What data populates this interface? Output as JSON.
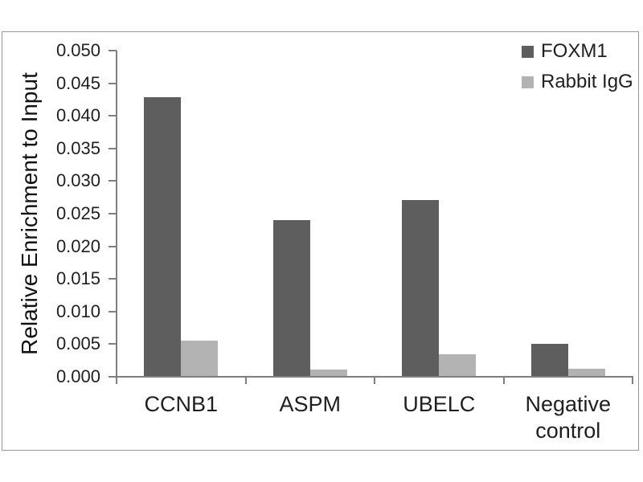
{
  "figure": {
    "background": "#ffffff",
    "frame_border_color": "#979797"
  },
  "chart_data": {
    "type": "bar",
    "title": "",
    "xlabel": "",
    "ylabel": "Relative Enrichment to Input",
    "categories": [
      "CCNB1",
      "ASPM",
      "UBELC",
      "Negative control"
    ],
    "series": [
      {
        "name": "FOXM1",
        "color": "#5e5e5e",
        "values": [
          0.0428,
          0.024,
          0.0271,
          0.0051
        ]
      },
      {
        "name": "Rabbit IgG",
        "color": "#b3b3b3",
        "values": [
          0.0055,
          0.0011,
          0.0034,
          0.0012
        ]
      }
    ],
    "ylim": [
      0,
      0.05
    ],
    "ytick_step": 0.005,
    "ytick_decimals": 3,
    "ytick_labels": [
      "0.000",
      "0.005",
      "0.010",
      "0.015",
      "0.020",
      "0.025",
      "0.030",
      "0.035",
      "0.040",
      "0.045",
      "0.050"
    ],
    "grid": false,
    "legend_position": "top-right",
    "axis_color": "#7f7f7f",
    "text_color": "#1f1f1f"
  }
}
